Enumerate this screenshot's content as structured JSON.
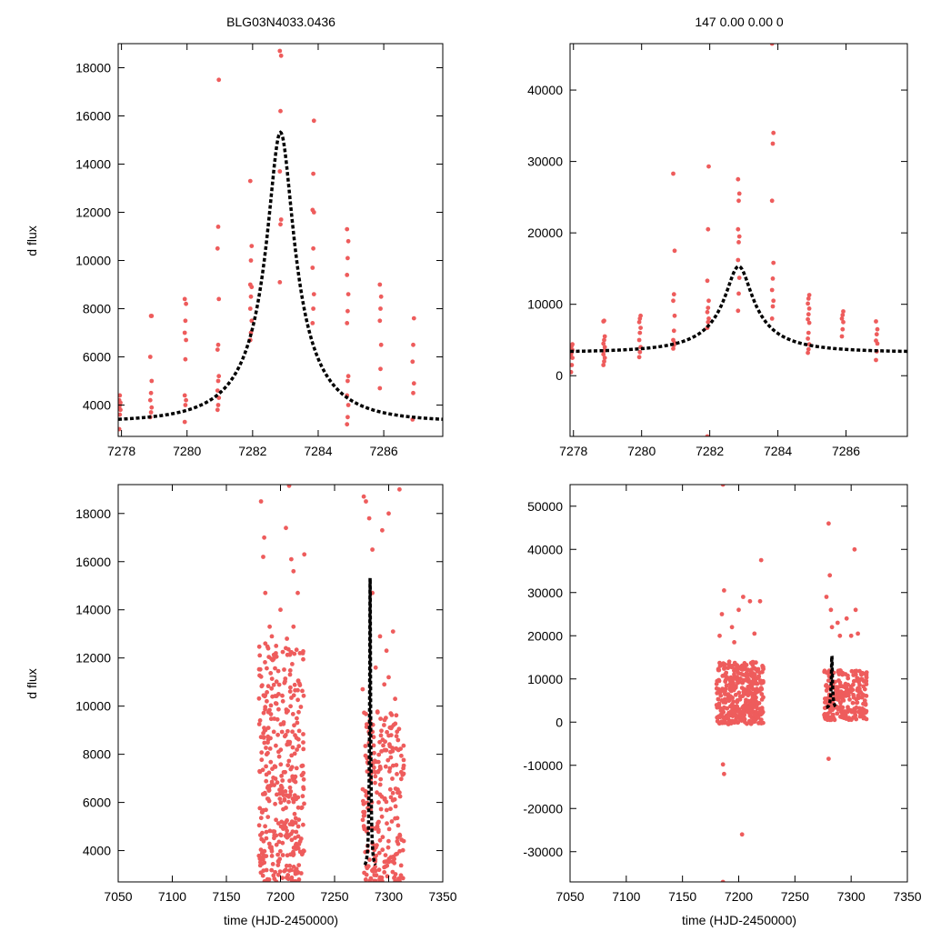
{
  "figure": {
    "title_left": "BLG03N4033.0436",
    "title_right": "147  0.00  0.00  0",
    "ylabel": "d flux",
    "xlabel": "time (HJD-2450000)",
    "colors": {
      "points": "#ee5c5c",
      "model": "#000000",
      "frame": "#000000"
    }
  },
  "chart_data": [
    {
      "id": "top-left",
      "type": "scatter",
      "title": "BLG03N4033.0436",
      "xlabel": "",
      "ylabel": "d flux",
      "xlim": [
        7277.9,
        7287.8
      ],
      "ylim": [
        2700,
        19000
      ],
      "xticks": [
        7278,
        7280,
        7282,
        7284,
        7286
      ],
      "yticks": [
        4000,
        6000,
        8000,
        10000,
        12000,
        14000,
        16000,
        18000
      ],
      "model": {
        "t0": 7282.85,
        "u0": 0.18,
        "tE": 2.2,
        "base": 700,
        "amp": 2600
      },
      "clusters": [
        {
          "x": 7277.95,
          "ys": [
            3000,
            3600,
            3800,
            3900,
            4000,
            4100,
            4200,
            4400
          ]
        },
        {
          "x": 7278.9,
          "ys": [
            3500,
            3700,
            3900,
            4200,
            4500,
            5000,
            6000,
            7700,
            7700
          ]
        },
        {
          "x": 7279.95,
          "ys": [
            3300,
            4000,
            4200,
            4400,
            5900,
            6700,
            7000,
            7500,
            8200,
            8400
          ]
        },
        {
          "x": 7280.95,
          "ys": [
            3800,
            4000,
            4300,
            4600,
            5000,
            5200,
            6300,
            6500,
            8400,
            10500,
            11400,
            17500
          ]
        },
        {
          "x": 7281.95,
          "ys": [
            6700,
            7000,
            7500,
            8000,
            8500,
            8900,
            9000,
            10000,
            10600,
            13300
          ]
        },
        {
          "x": 7282.85,
          "ys": [
            9100,
            11500,
            11700,
            13700,
            16200,
            18500,
            18700
          ]
        },
        {
          "x": 7283.85,
          "ys": [
            7400,
            8000,
            8600,
            9700,
            10500,
            12000,
            12100,
            13600,
            15800
          ]
        },
        {
          "x": 7284.9,
          "ys": [
            3200,
            3500,
            4000,
            4400,
            5000,
            5200,
            7400,
            7900,
            8600,
            9400,
            10100,
            10800,
            11300
          ]
        },
        {
          "x": 7285.9,
          "ys": [
            4700,
            5500,
            6500,
            7500,
            8000,
            8500,
            9000
          ]
        },
        {
          "x": 7286.9,
          "ys": [
            3400,
            4500,
            4900,
            5800,
            6500,
            7600
          ]
        }
      ]
    },
    {
      "id": "top-right",
      "type": "scatter",
      "title": "147  0.00  0.00  0",
      "xlabel": "",
      "ylabel": "",
      "xlim": [
        7277.9,
        7287.8
      ],
      "ylim": [
        -8500,
        46500
      ],
      "xticks": [
        7278,
        7280,
        7282,
        7284,
        7286
      ],
      "yticks": [
        0,
        10000,
        20000,
        30000,
        40000
      ],
      "model": {
        "t0": 7282.85,
        "u0": 0.18,
        "tE": 2.2,
        "base": 700,
        "amp": 2600
      },
      "clusters": [
        {
          "x": 7277.95,
          "ys": [
            500,
            1500,
            2500,
            3000,
            3300,
            3600,
            3900,
            4200,
            4400
          ]
        },
        {
          "x": 7278.9,
          "ys": [
            1500,
            2000,
            2500,
            3000,
            3500,
            4000,
            4500,
            5000,
            5500,
            7600,
            7700
          ]
        },
        {
          "x": 7279.95,
          "ys": [
            2600,
            3300,
            4000,
            5000,
            6000,
            6700,
            7500,
            8000,
            8400
          ]
        },
        {
          "x": 7280.95,
          "ys": [
            3800,
            4300,
            4600,
            5000,
            6300,
            8400,
            10500,
            11400,
            17500,
            28300
          ]
        },
        {
          "x": 7281.95,
          "ys": [
            6700,
            7500,
            8000,
            8900,
            9500,
            10500,
            13300,
            20500,
            29300,
            -8500
          ]
        },
        {
          "x": 7282.85,
          "ys": [
            9100,
            11500,
            13700,
            16200,
            18700,
            19500,
            20500,
            24500,
            25500,
            27500
          ]
        },
        {
          "x": 7283.85,
          "ys": [
            8000,
            9700,
            10500,
            12000,
            13600,
            15800,
            24500,
            32500,
            34000,
            46500
          ]
        },
        {
          "x": 7284.9,
          "ys": [
            3200,
            3700,
            4400,
            5200,
            6000,
            7400,
            7900,
            8600,
            9400,
            10100,
            10800,
            11300
          ]
        },
        {
          "x": 7285.9,
          "ys": [
            5500,
            6500,
            7500,
            8000,
            8500,
            9000
          ]
        },
        {
          "x": 7286.9,
          "ys": [
            2200,
            3400,
            4500,
            4900,
            5800,
            6500,
            7600
          ]
        }
      ]
    },
    {
      "id": "bottom-left",
      "type": "scatter",
      "title": "",
      "xlabel": "time (HJD-2450000)",
      "ylabel": "d flux",
      "xlim": [
        7050,
        7350
      ],
      "ylim": [
        2700,
        19200
      ],
      "xticks": [
        7050,
        7100,
        7150,
        7200,
        7250,
        7300,
        7350
      ],
      "yticks": [
        4000,
        6000,
        8000,
        10000,
        12000,
        14000,
        16000,
        18000
      ],
      "model": {
        "t0": 7282.85,
        "u0": 0.18,
        "tE": 2.2,
        "base": 700,
        "amp": 2600
      },
      "seasons": [
        {
          "xmin": 7180,
          "xmax": 7222,
          "ymin": 2700,
          "ymax": 12500,
          "count": 380
        },
        {
          "xmin": 7276,
          "xmax": 7314,
          "ymin": 2700,
          "ymax": 9800,
          "count": 240
        }
      ],
      "outliers": [
        [
          7182,
          18500
        ],
        [
          7185,
          17000
        ],
        [
          7184,
          16200
        ],
        [
          7186,
          14700
        ],
        [
          7190,
          13300
        ],
        [
          7205,
          17400
        ],
        [
          7210,
          16100
        ],
        [
          7212,
          15600
        ],
        [
          7222,
          16300
        ],
        [
          7216,
          14700
        ],
        [
          7200,
          14000
        ],
        [
          7208,
          19150
        ],
        [
          7192,
          12900
        ],
        [
          7196,
          12500
        ],
        [
          7206,
          12800
        ],
        [
          7212,
          13300
        ],
        [
          7218,
          12200
        ],
        [
          7186,
          12600
        ],
        [
          7277,
          18700
        ],
        [
          7279,
          18500
        ],
        [
          7282,
          17800
        ],
        [
          7285,
          16500
        ],
        [
          7294,
          17300
        ],
        [
          7300,
          18000
        ],
        [
          7310,
          19000
        ],
        [
          7304,
          13100
        ],
        [
          7298,
          12300
        ],
        [
          7288,
          11600
        ],
        [
          7296,
          10900
        ],
        [
          7306,
          10300
        ],
        [
          7292,
          12900
        ],
        [
          7276,
          10700
        ],
        [
          7285,
          14700
        ],
        [
          7300,
          11200
        ]
      ]
    },
    {
      "id": "bottom-right",
      "type": "scatter",
      "title": "",
      "xlabel": "time (HJD-2450000)",
      "ylabel": "",
      "xlim": [
        7050,
        7350
      ],
      "ylim": [
        -37000,
        55000
      ],
      "xticks": [
        7050,
        7100,
        7150,
        7200,
        7250,
        7300,
        7350
      ],
      "yticks": [
        -30000,
        -20000,
        -10000,
        0,
        10000,
        20000,
        30000,
        40000,
        50000
      ],
      "model": {
        "t0": 7282.85,
        "u0": 0.18,
        "tE": 2.2,
        "base": 700,
        "amp": 2600
      },
      "seasons": [
        {
          "xmin": 7180,
          "xmax": 7222,
          "ymin": -500,
          "ymax": 14000,
          "count": 380
        },
        {
          "xmin": 7276,
          "xmax": 7314,
          "ymin": 500,
          "ymax": 12000,
          "count": 240
        }
      ],
      "outliers": [
        [
          7186,
          55000
        ],
        [
          7187,
          30500
        ],
        [
          7185,
          25000
        ],
        [
          7194,
          22000
        ],
        [
          7200,
          26000
        ],
        [
          7204,
          29000
        ],
        [
          7210,
          28000
        ],
        [
          7220,
          37500
        ],
        [
          7219,
          28000
        ],
        [
          7214,
          20500
        ],
        [
          7196,
          18500
        ],
        [
          7183,
          20000
        ],
        [
          7186,
          -9800
        ],
        [
          7187,
          -12000
        ],
        [
          7203,
          -26000
        ],
        [
          7186,
          -37000
        ],
        [
          7280,
          46000
        ],
        [
          7281,
          34000
        ],
        [
          7278,
          29000
        ],
        [
          7283,
          22000
        ],
        [
          7282,
          26000
        ],
        [
          7290,
          20000
        ],
        [
          7303,
          40000
        ],
        [
          7304,
          26000
        ],
        [
          7296,
          24000
        ],
        [
          7306,
          20500
        ],
        [
          7280,
          -8500
        ],
        [
          7300,
          20000
        ],
        [
          7288,
          23000
        ]
      ]
    }
  ]
}
